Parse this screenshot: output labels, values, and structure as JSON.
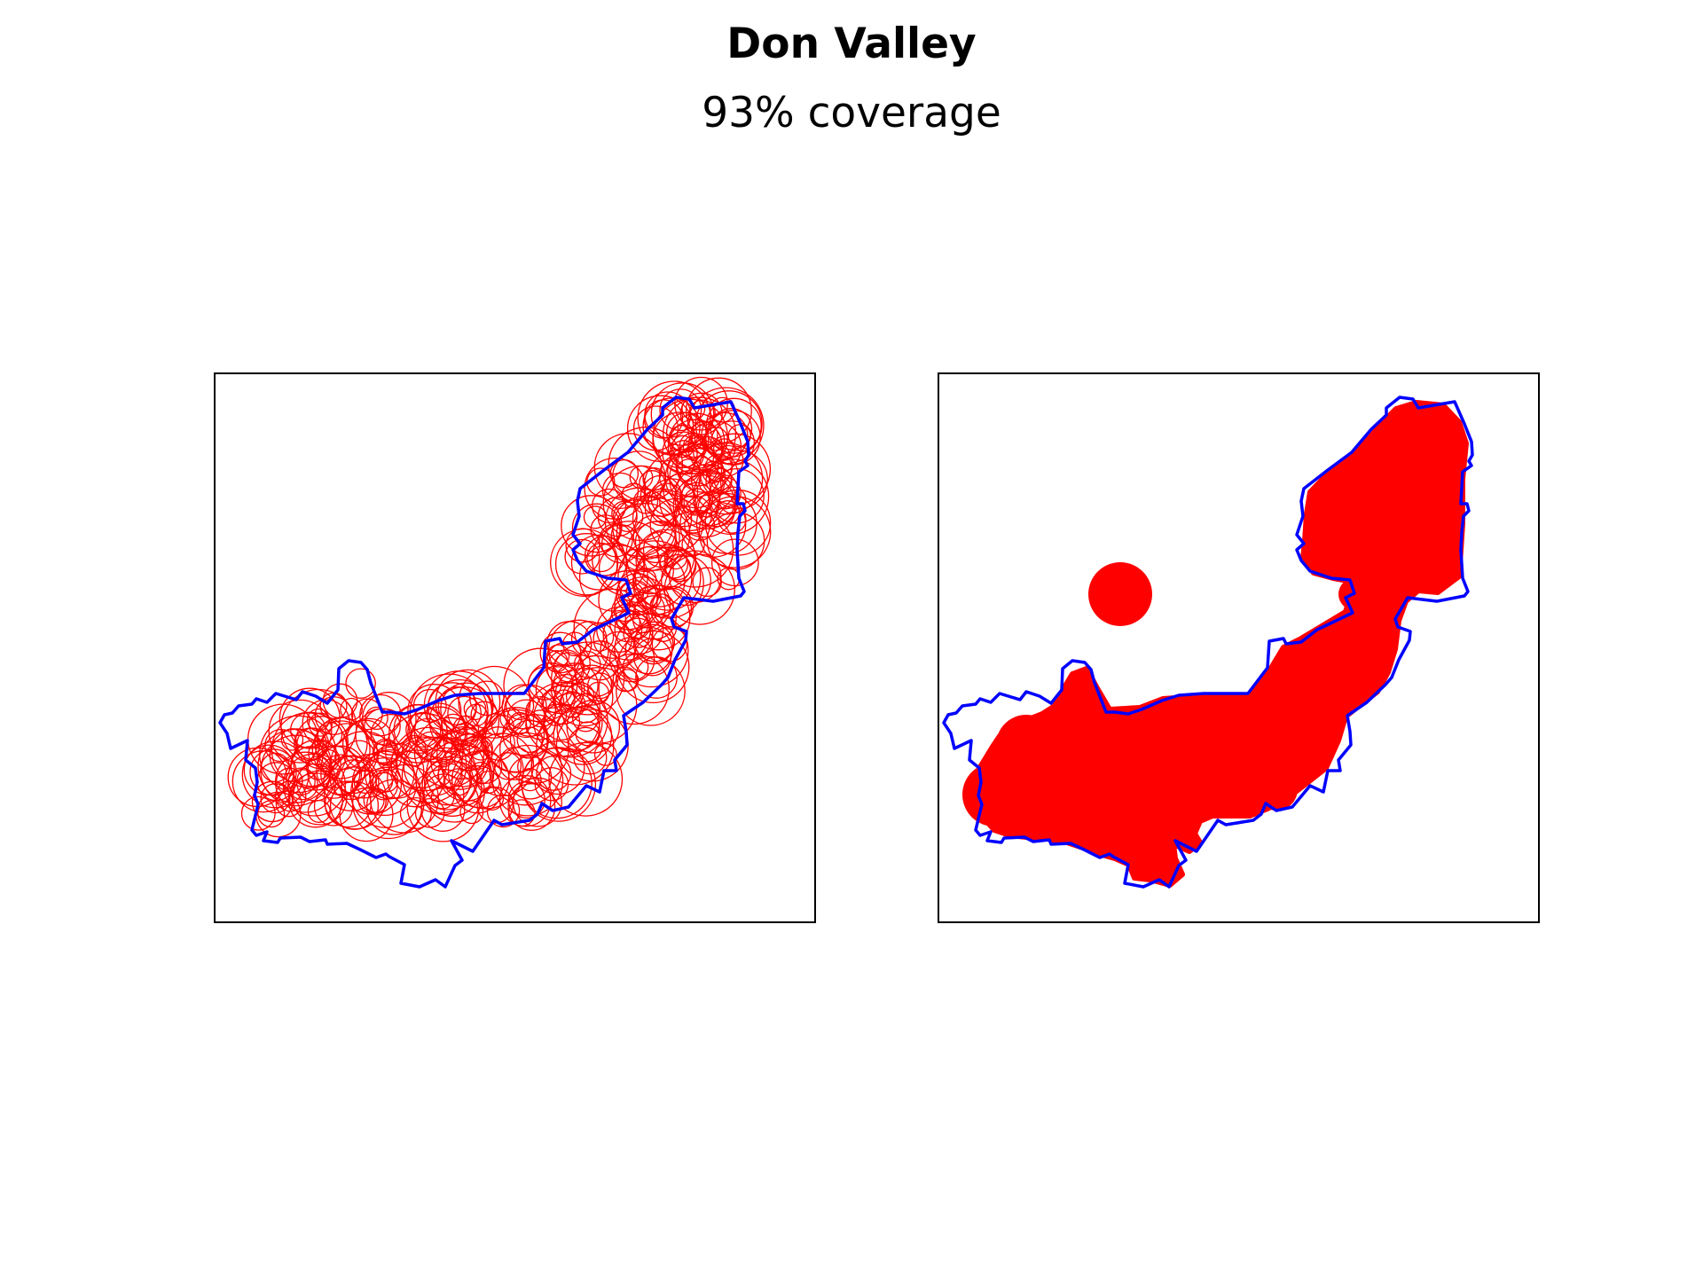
{
  "figure": {
    "title": "Don Valley",
    "subtitle": "93% coverage"
  },
  "colors": {
    "boundary": "#0000ff",
    "coverage": "#ff0000",
    "frame": "#000000",
    "background": "#ffffff"
  },
  "panels": [
    {
      "name": "coverage-circles-panel",
      "style": "outlined-circles"
    },
    {
      "name": "coverage-union-panel",
      "style": "filled-union"
    }
  ]
}
